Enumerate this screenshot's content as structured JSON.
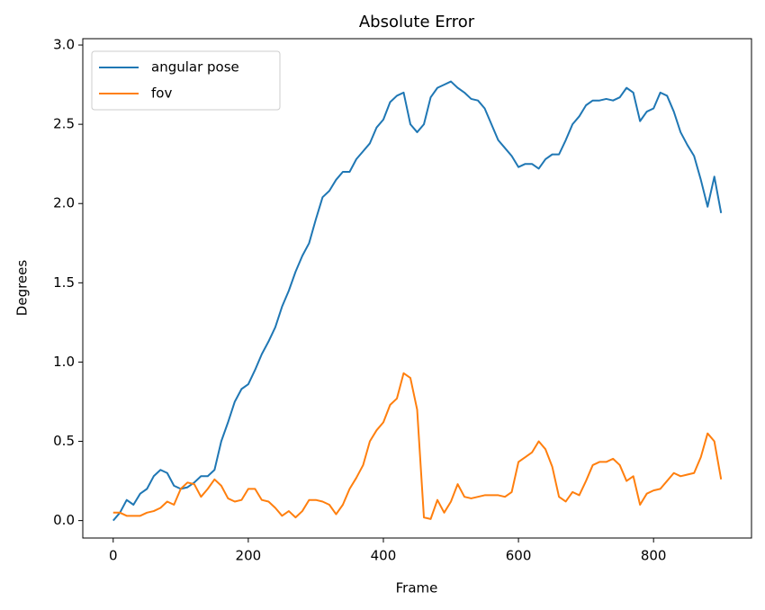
{
  "chart_data": {
    "type": "line",
    "title": "Absolute Error",
    "x_label": "Frame",
    "y_label": "Degrees",
    "x": [
      0,
      10,
      20,
      30,
      40,
      50,
      60,
      70,
      80,
      90,
      100,
      110,
      120,
      130,
      140,
      150,
      160,
      170,
      180,
      190,
      200,
      210,
      220,
      230,
      240,
      250,
      260,
      270,
      280,
      290,
      300,
      310,
      320,
      330,
      340,
      350,
      360,
      370,
      380,
      390,
      400,
      410,
      420,
      430,
      440,
      450,
      460,
      470,
      480,
      490,
      500,
      510,
      520,
      530,
      540,
      550,
      560,
      570,
      580,
      590,
      600,
      610,
      620,
      630,
      640,
      650,
      660,
      670,
      680,
      690,
      700,
      710,
      720,
      730,
      740,
      750,
      760,
      770,
      780,
      790,
      800,
      810,
      820,
      830,
      840,
      850,
      860,
      870,
      880,
      890,
      900
    ],
    "series": [
      {
        "name": "angular pose",
        "color": "#1f77b4",
        "values": [
          0.0,
          0.05,
          0.13,
          0.1,
          0.17,
          0.2,
          0.28,
          0.32,
          0.3,
          0.22,
          0.2,
          0.21,
          0.24,
          0.28,
          0.28,
          0.32,
          0.5,
          0.62,
          0.75,
          0.83,
          0.86,
          0.95,
          1.05,
          1.13,
          1.22,
          1.35,
          1.45,
          1.57,
          1.67,
          1.75,
          1.9,
          2.04,
          2.08,
          2.15,
          2.2,
          2.2,
          2.28,
          2.33,
          2.38,
          2.48,
          2.53,
          2.64,
          2.68,
          2.7,
          2.5,
          2.45,
          2.5,
          2.67,
          2.73,
          2.75,
          2.77,
          2.73,
          2.7,
          2.66,
          2.65,
          2.6,
          2.5,
          2.4,
          2.35,
          2.3,
          2.23,
          2.25,
          2.25,
          2.22,
          2.28,
          2.31,
          2.31,
          2.4,
          2.5,
          2.55,
          2.62,
          2.65,
          2.65,
          2.66,
          2.65,
          2.67,
          2.73,
          2.7,
          2.52,
          2.58,
          2.6,
          2.7,
          2.68,
          2.58,
          2.45,
          2.37,
          2.3,
          2.15,
          1.98,
          2.17,
          1.94
        ]
      },
      {
        "name": "fov",
        "color": "#ff7f0e",
        "values": [
          0.05,
          0.05,
          0.03,
          0.03,
          0.03,
          0.05,
          0.06,
          0.08,
          0.12,
          0.1,
          0.2,
          0.24,
          0.23,
          0.15,
          0.2,
          0.26,
          0.22,
          0.14,
          0.12,
          0.13,
          0.2,
          0.2,
          0.13,
          0.12,
          0.08,
          0.03,
          0.06,
          0.02,
          0.06,
          0.13,
          0.13,
          0.12,
          0.1,
          0.04,
          0.1,
          0.2,
          0.27,
          0.35,
          0.5,
          0.57,
          0.62,
          0.73,
          0.77,
          0.93,
          0.9,
          0.7,
          0.02,
          0.01,
          0.13,
          0.05,
          0.12,
          0.23,
          0.15,
          0.14,
          0.15,
          0.16,
          0.16,
          0.16,
          0.15,
          0.18,
          0.37,
          0.4,
          0.43,
          0.5,
          0.45,
          0.34,
          0.15,
          0.12,
          0.18,
          0.16,
          0.25,
          0.35,
          0.37,
          0.37,
          0.39,
          0.35,
          0.25,
          0.28,
          0.1,
          0.17,
          0.19,
          0.2,
          0.25,
          0.3,
          0.28,
          0.29,
          0.3,
          0.4,
          0.55,
          0.5,
          0.26
        ]
      }
    ],
    "xlim": [
      -45,
      945
    ],
    "xticks": [
      0,
      200,
      400,
      600,
      800
    ],
    "ylim": [
      -0.11,
      3.04
    ],
    "yticks": [
      {
        "value": 0,
        "label": "0.0"
      },
      0.5,
      {
        "value": 1,
        "label": "1.0"
      },
      1.5,
      {
        "value": 2,
        "label": "2.0"
      },
      2.5,
      {
        "value": 3,
        "label": "3.0"
      }
    ],
    "legend_loc": "upper left"
  }
}
